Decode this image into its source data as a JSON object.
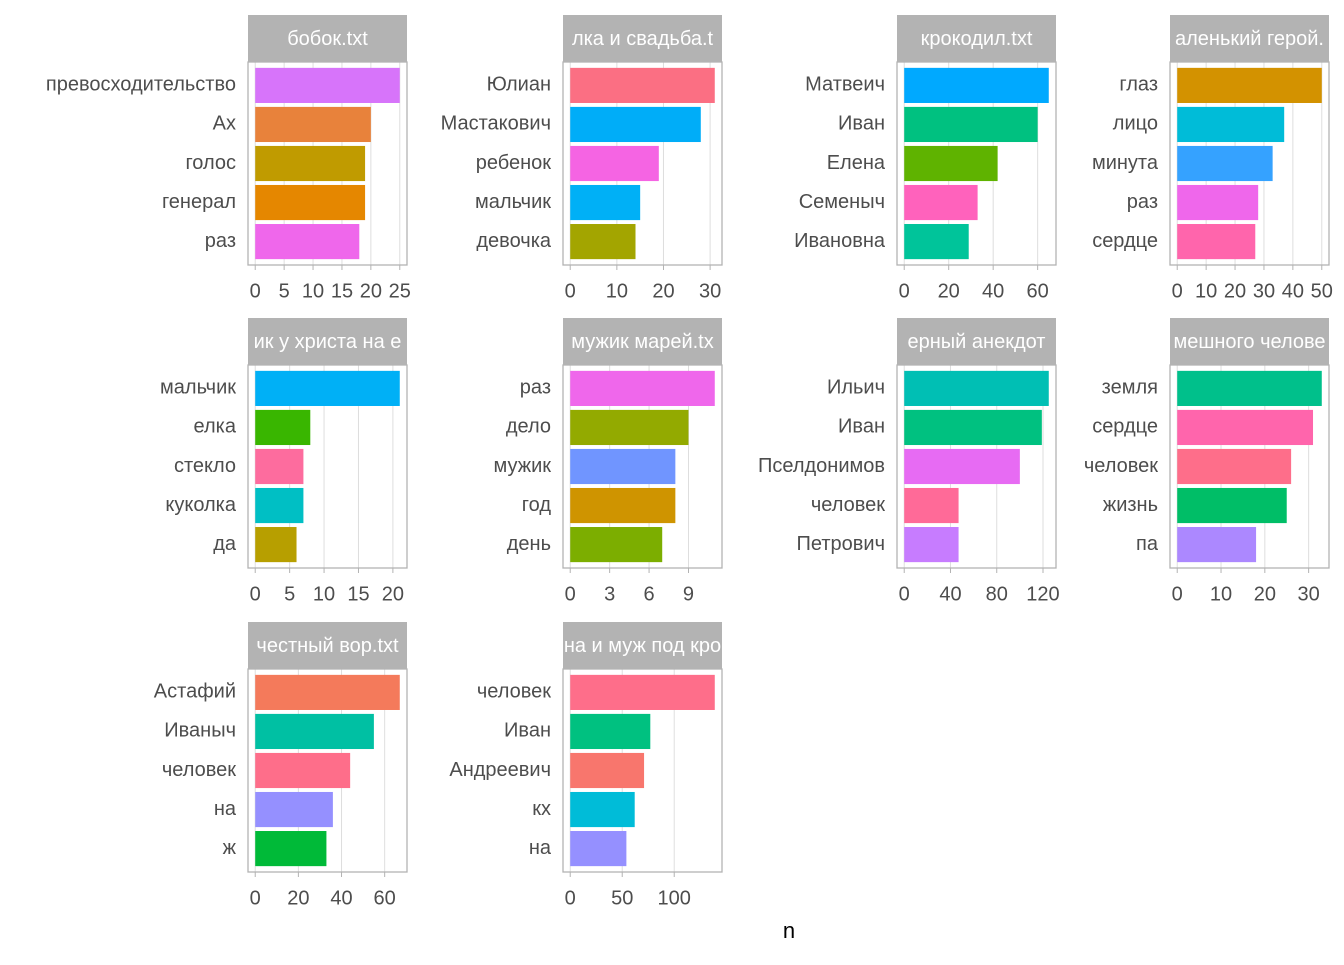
{
  "chart_data": [
    {
      "type": "bar",
      "orientation": "horizontal",
      "title": "бобок.txt",
      "categories": [
        "превосходительство",
        "Ах",
        "голос",
        "генерал",
        "раз"
      ],
      "values": [
        25,
        20,
        19,
        19,
        18
      ],
      "colors": [
        "#d774fa",
        "#e8823b",
        "#c09b00",
        "#e58700",
        "#ef67eb"
      ],
      "xlim": [
        -1.25,
        26.25
      ],
      "xticks": [
        0,
        5,
        10,
        15,
        20,
        25
      ],
      "grid": true
    },
    {
      "type": "bar",
      "orientation": "horizontal",
      "title": "лка и свадьба.t",
      "categories": [
        "Юлиан",
        "Мастакович",
        "ребенок",
        "мальчик",
        "девочка"
      ],
      "values": [
        31,
        28,
        19,
        15,
        14
      ],
      "colors": [
        "#fb6f83",
        "#00adf8",
        "#f564e3",
        "#00b0f6",
        "#a3a500"
      ],
      "xlim": [
        -1.55,
        32.55
      ],
      "xticks": [
        0,
        10,
        20,
        30
      ],
      "grid": true
    },
    {
      "type": "bar",
      "orientation": "horizontal",
      "title": "крокодил.txt",
      "categories": [
        "Матвеич",
        "Иван",
        "Елена",
        "Семеныч",
        "Ивановна"
      ],
      "values": [
        65,
        60,
        42,
        33,
        29
      ],
      "colors": [
        "#00a9ff",
        "#00c180",
        "#5fb300",
        "#ff62bc",
        "#00c49a"
      ],
      "xlim": [
        -3.25,
        68.25
      ],
      "xticks": [
        0,
        20,
        40,
        60
      ],
      "grid": true
    },
    {
      "type": "bar",
      "orientation": "horizontal",
      "title": "аленький герой.",
      "categories": [
        "глаз",
        "лицо",
        "минута",
        "раз",
        "сердце"
      ],
      "values": [
        50,
        37,
        33,
        28,
        27
      ],
      "colors": [
        "#d39200",
        "#00bcd8",
        "#35a2ff",
        "#ef67eb",
        "#ff65ac"
      ],
      "xlim": [
        -2.5,
        52.5
      ],
      "xticks": [
        0,
        10,
        20,
        30,
        40,
        50
      ],
      "grid": true
    },
    {
      "type": "bar",
      "orientation": "horizontal",
      "title": "ик у христа на е",
      "categories": [
        "мальчик",
        "елка",
        "стекло",
        "куколка",
        "да"
      ],
      "values": [
        21,
        8,
        7,
        7,
        6
      ],
      "colors": [
        "#00b0f6",
        "#39b600",
        "#fd6c9e",
        "#00bfc4",
        "#b79f00"
      ],
      "xlim": [
        -1.05,
        22.05
      ],
      "xticks": [
        0,
        5,
        10,
        15,
        20
      ],
      "grid": true
    },
    {
      "type": "bar",
      "orientation": "horizontal",
      "title": "мужик марей.tx",
      "categories": [
        "раз",
        "дело",
        "мужик",
        "год",
        "день"
      ],
      "values": [
        11,
        9,
        8,
        8,
        7
      ],
      "colors": [
        "#ef67eb",
        "#93aa00",
        "#7095ff",
        "#cf9400",
        "#7cae00"
      ],
      "xlim": [
        -0.55,
        11.55
      ],
      "xticks": [
        0,
        3,
        6,
        9
      ],
      "grid": true
    },
    {
      "type": "bar",
      "orientation": "horizontal",
      "title": "ерный анекдот",
      "categories": [
        "Ильич",
        "Иван",
        "Пселдонимов",
        "человек",
        "Петрович"
      ],
      "values": [
        125,
        119,
        100,
        47,
        47
      ],
      "colors": [
        "#00bfb4",
        "#00c180",
        "#e76bf3",
        "#ff6a98",
        "#c77cff"
      ],
      "xlim": [
        -6.25,
        131.25
      ],
      "xticks": [
        0,
        40,
        80,
        120
      ],
      "grid": true
    },
    {
      "type": "bar",
      "orientation": "horizontal",
      "title": "мешного челове",
      "categories": [
        "земля",
        "сердце",
        "человек",
        "жизнь",
        "па"
      ],
      "values": [
        33,
        31,
        26,
        25,
        18
      ],
      "colors": [
        "#00c08b",
        "#ff65ac",
        "#fe6e8a",
        "#00be67",
        "#ac88ff"
      ],
      "xlim": [
        -1.65,
        34.65
      ],
      "xticks": [
        0,
        10,
        20,
        30
      ],
      "grid": true
    },
    {
      "type": "bar",
      "orientation": "horizontal",
      "title": "честный вор.txt",
      "categories": [
        "Астафий",
        "Иваныч",
        "человек",
        "на",
        "ж"
      ],
      "values": [
        67,
        55,
        44,
        36,
        33
      ],
      "colors": [
        "#f47a5b",
        "#00c0a3",
        "#fe6e8a",
        "#9590ff",
        "#00ba38"
      ],
      "xlim": [
        -3.35,
        70.35
      ],
      "xticks": [
        0,
        20,
        40,
        60
      ],
      "grid": true
    },
    {
      "type": "bar",
      "orientation": "horizontal",
      "title": "на и муж под кро",
      "categories": [
        "человек",
        "Иван",
        "Андреевич",
        "кх",
        "на"
      ],
      "values": [
        139,
        77,
        71,
        62,
        54
      ],
      "colors": [
        "#fe6e8a",
        "#00c180",
        "#f8766d",
        "#00bcd8",
        "#9590ff"
      ],
      "xlim": [
        -6.95,
        145.95
      ],
      "xticks": [
        0,
        50,
        100
      ],
      "grid": true
    }
  ],
  "xlabel": "n"
}
